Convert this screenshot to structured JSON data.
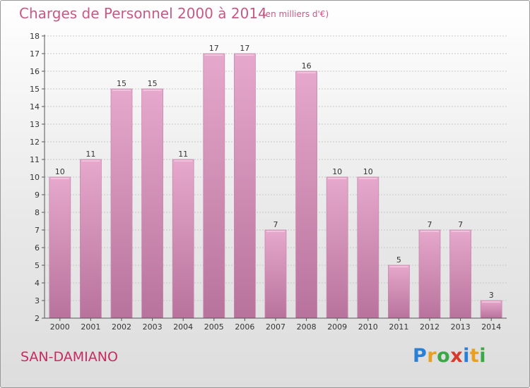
{
  "chart_data": {
    "type": "bar",
    "title": "Charges de Personnel 2000 à 2014",
    "subtitle": "(en milliers d'€)",
    "categories": [
      "2000",
      "2001",
      "2002",
      "2003",
      "2004",
      "2005",
      "2006",
      "2007",
      "2008",
      "2009",
      "2010",
      "2011",
      "2012",
      "2013",
      "2014"
    ],
    "values": [
      10,
      11,
      15,
      15,
      11,
      17,
      17,
      7,
      16,
      10,
      10,
      5,
      7,
      7,
      3
    ],
    "ylim": [
      2,
      18
    ],
    "yticks": [
      2,
      3,
      4,
      5,
      6,
      7,
      8,
      9,
      10,
      11,
      12,
      13,
      14,
      15,
      16,
      17,
      18
    ],
    "grid": true,
    "bar_color": "#d98ab5"
  },
  "commune": "SAN-DAMIANO",
  "logo": {
    "letters": [
      "P",
      "r",
      "o",
      "x",
      "i",
      "t",
      "i"
    ],
    "colors": [
      "#2a7fd6",
      "#e8a020",
      "#3aa845",
      "#d63a2a",
      "#2a7fd6",
      "#e8a020",
      "#3aa845"
    ]
  }
}
